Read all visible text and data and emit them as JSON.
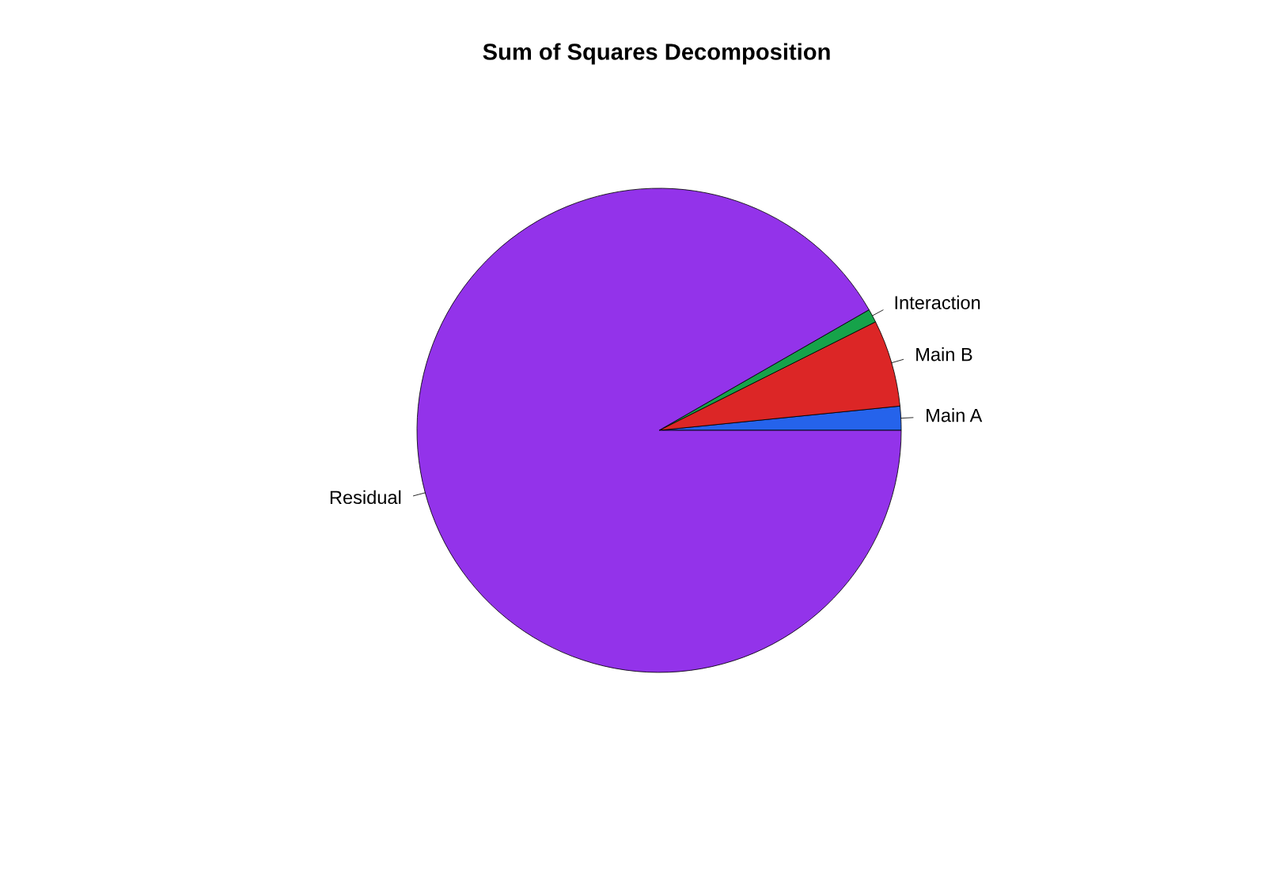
{
  "chart_data": {
    "type": "pie",
    "title": "Sum of Squares Decomposition",
    "categories": [
      "Main A",
      "Main B",
      "Interaction",
      "Residual"
    ],
    "values": [
      1.6,
      5.8,
      0.9,
      91.7
    ],
    "colors": [
      "#2563eb",
      "#dc2626",
      "#16a34a",
      "#9333ea"
    ]
  }
}
